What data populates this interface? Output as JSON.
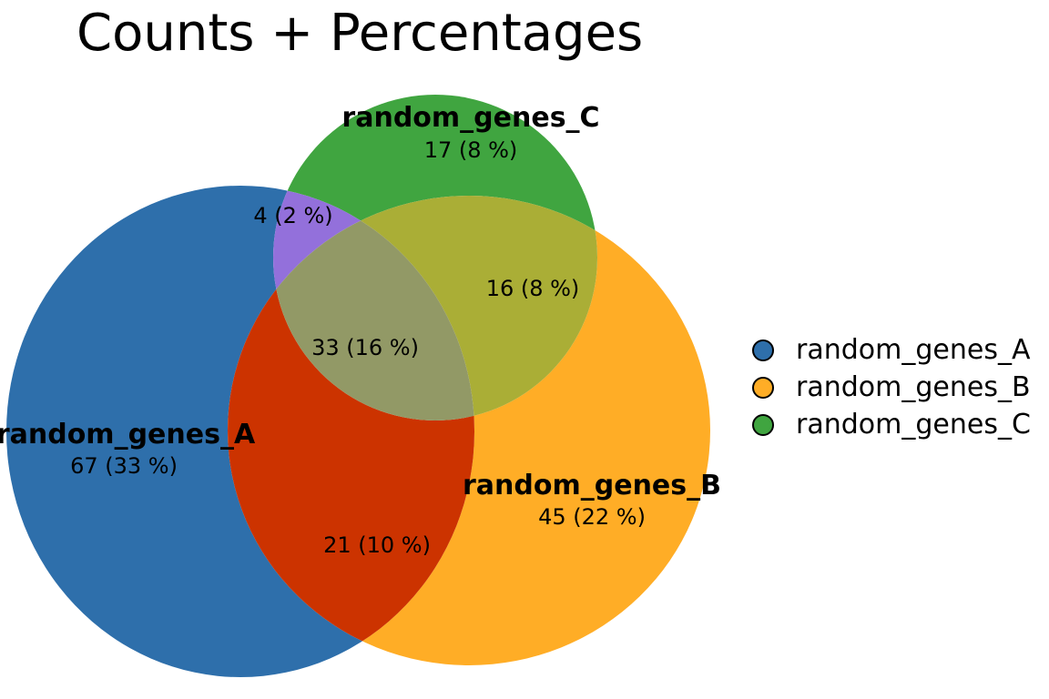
{
  "title": "Counts + Percentages",
  "colors": {
    "A": "#2e6fab",
    "B": "#ffad26",
    "C": "#40a540",
    "AC": "#9370db",
    "AB": "#cc3300",
    "BC": "#aaae36",
    "ABC": "#929966"
  },
  "sets": [
    {
      "key": "A",
      "name": "random_genes_A",
      "count_label": "67 (33 %)"
    },
    {
      "key": "B",
      "name": "random_genes_B",
      "count_label": "45 (22 %)"
    },
    {
      "key": "C",
      "name": "random_genes_C",
      "count_label": "17 (8 %)"
    }
  ],
  "intersections": [
    {
      "key": "AC",
      "label": "4 (2 %)"
    },
    {
      "key": "BC",
      "label": "16 (8 %)"
    },
    {
      "key": "ABC",
      "label": "33 (16 %)"
    },
    {
      "key": "AB",
      "label": "21 (10 %)"
    }
  ],
  "legend": {
    "items": [
      {
        "label": "random_genes_A",
        "color": "#2e6fab"
      },
      {
        "label": "random_genes_B",
        "color": "#ffad26"
      },
      {
        "label": "random_genes_C",
        "color": "#40a540"
      }
    ]
  }
}
